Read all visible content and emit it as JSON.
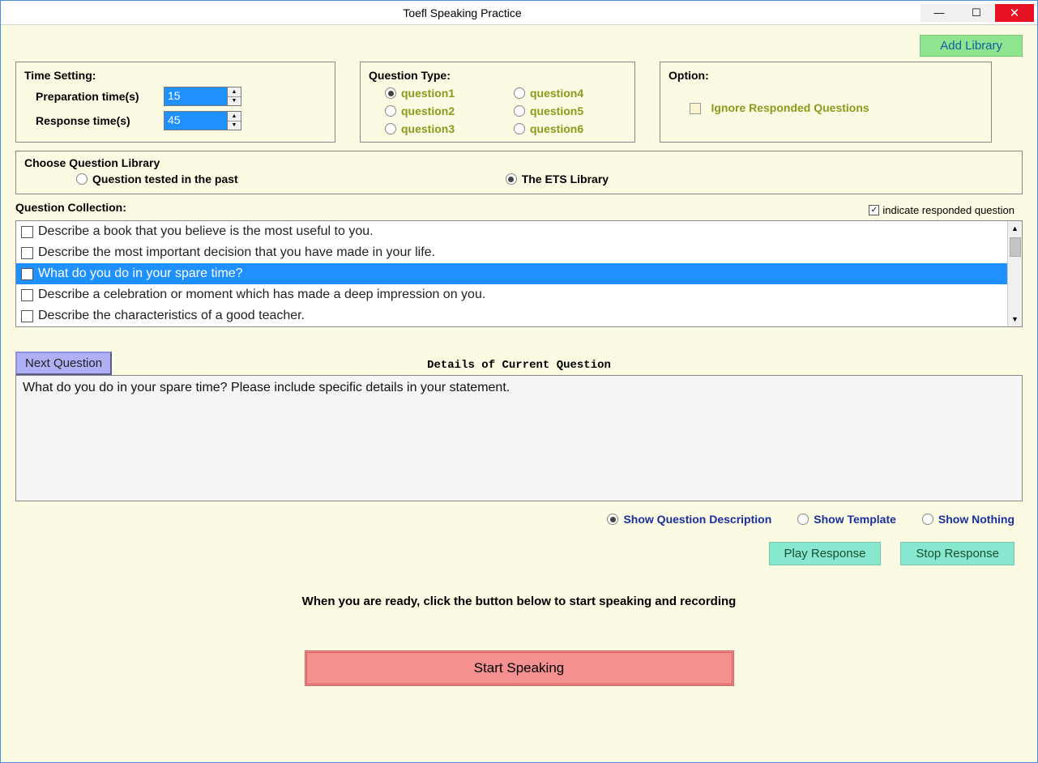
{
  "window": {
    "title": "Toefl Speaking Practice"
  },
  "colors": {
    "bg": "#fbfbe4",
    "accent_green": "#8fe48f",
    "accent_olive": "#8a9a1a",
    "accent_blue": "#1e90ff",
    "accent_lilac": "#b0b0f6",
    "accent_mint": "#88e8cf",
    "accent_pink": "#f49090",
    "close_red": "#e81123"
  },
  "add_library_btn": "Add Library",
  "time_setting": {
    "title": "Time Setting:",
    "prep_label": "Preparation time(s)",
    "prep_value": "15",
    "resp_label": "Response time(s)",
    "resp_value": "45"
  },
  "question_type": {
    "title": "Question Type:",
    "items": [
      {
        "label": "question1",
        "checked": true
      },
      {
        "label": "question2",
        "checked": false
      },
      {
        "label": "question3",
        "checked": false
      },
      {
        "label": "question4",
        "checked": false
      },
      {
        "label": "question5",
        "checked": false
      },
      {
        "label": "question6",
        "checked": false
      }
    ]
  },
  "option": {
    "title": "Option:",
    "ignore_label": "Ignore Responded Questions",
    "ignore_checked": false
  },
  "choose_lib": {
    "title": "Choose Question Library",
    "past_label": "Question tested in the past",
    "past_checked": false,
    "ets_label": "The ETS Library",
    "ets_checked": true
  },
  "collection": {
    "title": "Question Collection:",
    "indicate_label": "indicate responded question",
    "indicate_checked": true,
    "items": [
      {
        "text": "Describe a book that you believe is the most useful to you.",
        "selected": false
      },
      {
        "text": "Describe the most important decision that you have made in your life.",
        "selected": false
      },
      {
        "text": "What do you do in your spare time?",
        "selected": true
      },
      {
        "text": "Describe a celebration or moment which has made a deep impression on you.",
        "selected": false
      },
      {
        "text": "Describe the characteristics of a good teacher.",
        "selected": false
      }
    ]
  },
  "next_question_btn": "Next Question",
  "details_title": "Details of Current Question",
  "details_text": "What do you do in your spare time? Please include specific details in your statement.",
  "show_options": {
    "desc_label": "Show Question Description",
    "template_label": "Show Template",
    "nothing_label": "Show Nothing",
    "selected": "desc"
  },
  "play_response_btn": "Play Response",
  "stop_response_btn": "Stop Response",
  "ready_text": "When you are ready, click the button below to start speaking and recording",
  "start_speaking_btn": "Start Speaking"
}
